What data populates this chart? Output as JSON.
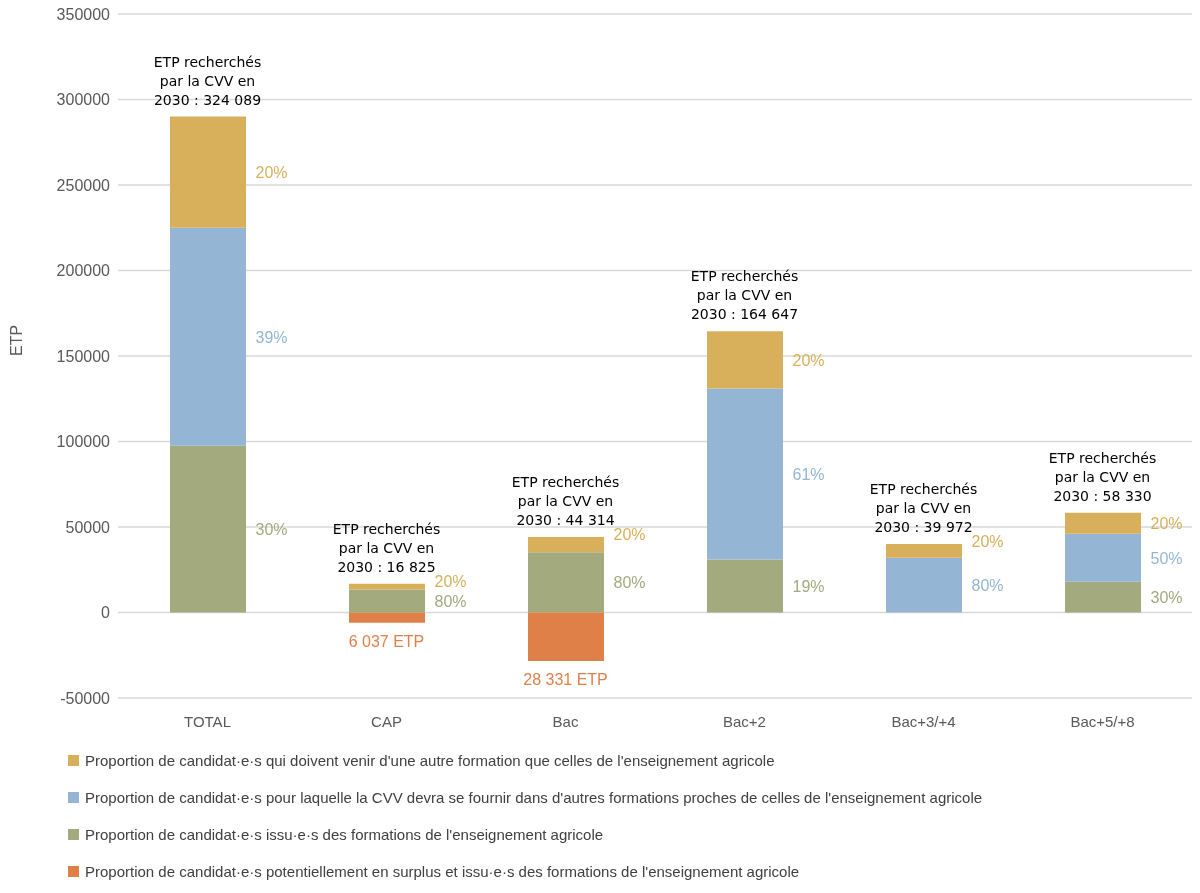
{
  "chart_data": {
    "type": "bar",
    "stacked": true,
    "ylabel": "ETP",
    "categories": [
      "TOTAL",
      "CAP",
      "Bac",
      "Bac+2",
      "Bac+3/+4",
      "Bac+5/+8"
    ],
    "series": [
      {
        "name": "Proportion de candidat·e·s qui doivent venir d'une autre formation que celles de l'enseignement agricole",
        "color": "#d8b05c",
        "values": [
          65000,
          3300,
          8800,
          33500,
          8000,
          12300
        ]
      },
      {
        "name": "Proportion de candidat·e·s pour laquelle la CVV devra se fournir dans d'autres formations proches de celles de l'enseignement agricole",
        "color": "#94b5d3",
        "values": [
          127500,
          null,
          null,
          100000,
          32000,
          28000
        ]
      },
      {
        "name": "Proportion de candidat·e·s issu·e·s des formations de l'enseignement agricole",
        "color": "#a2aa7e",
        "values": [
          97500,
          13500,
          35300,
          31000,
          null,
          18000
        ]
      },
      {
        "name": "Proportion de candidat·e·s potentiellement en surplus et issu·e·s des formations de l'enseignement agricole",
        "color": "#df8049",
        "values": [
          null,
          -6037,
          -28331,
          null,
          null,
          null
        ]
      }
    ],
    "ylim": [
      -50000,
      350000
    ],
    "yticks": [
      -50000,
      0,
      50000,
      100000,
      150000,
      200000,
      250000,
      300000,
      350000
    ],
    "grid": "y",
    "legend": "bottom",
    "annotations": [
      {
        "text": "ETP recherchés\npar la CVV en\n2030 : 324 089",
        "x": "TOTAL",
        "y": 290000
      },
      {
        "text": "ETP recherchés\npar la CVV en\n2030 :  16 825",
        "x": "CAP",
        "y": 16800
      },
      {
        "text": "ETP recherchés\npar la CVV en\n2030 : 44 314",
        "x": "Bac",
        "y": 44100
      },
      {
        "text": "ETP recherchés\npar la CVV en\n2030 : 164 647",
        "x": "Bac+2",
        "y": 164500
      },
      {
        "text": "ETP recherchés\npar la CVV en\n2030 : 39 972",
        "x": "Bac+3/+4",
        "y": 40000
      },
      {
        "text": "ETP recherchés\npar la CVV en\n2030 : 58 330",
        "x": "Bac+5/+8",
        "y": 58300
      },
      {
        "text": "6 037 ETP",
        "x": "CAP",
        "y": -6037
      },
      {
        "text": "28 331 ETP",
        "x": "Bac",
        "y": -28331
      },
      "20%",
      "39%",
      "30%",
      "20%",
      "80%",
      "20%",
      "80%",
      "20%",
      "61%",
      "19%",
      "20%",
      "80%",
      "20%",
      "50%",
      "30%"
    ]
  }
}
